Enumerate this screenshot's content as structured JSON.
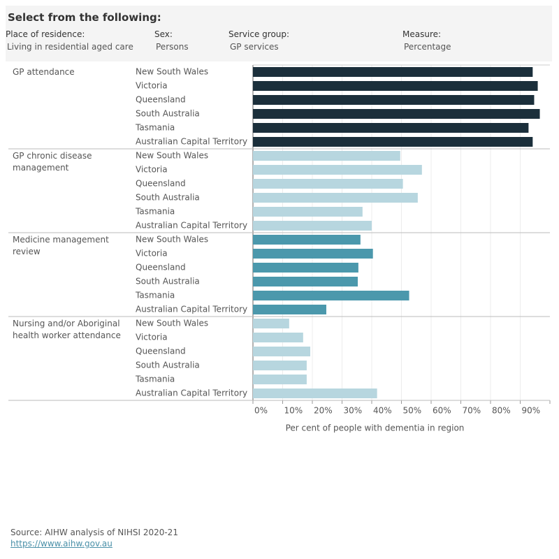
{
  "header": {
    "title": "Select from the following:",
    "filters": [
      {
        "label": "Place of residence:",
        "value": "Living in residential aged care"
      },
      {
        "label": "Sex:",
        "value": "Persons"
      },
      {
        "label": "Service group:",
        "value": "GP services"
      },
      {
        "label": "Measure:",
        "value": "Percentage"
      }
    ]
  },
  "chart_data": {
    "type": "bar",
    "orientation": "horizontal",
    "categories": [
      "New South Wales",
      "Victoria",
      "Queensland",
      "South Australia",
      "Tasmania",
      "Australian Capital Territory"
    ],
    "series": [
      {
        "name": "GP attendance",
        "color": "#1b2f3b",
        "values": [
          94.2,
          95.9,
          94.7,
          96.6,
          92.8,
          94.2
        ]
      },
      {
        "name": "GP chronic disease management",
        "color": "#b7d6df",
        "values": [
          49.6,
          56.9,
          50.5,
          55.5,
          36.9,
          40.0
        ]
      },
      {
        "name": "Medicine management review",
        "color": "#4b98ac",
        "values": [
          36.2,
          40.4,
          35.5,
          35.3,
          52.6,
          24.7
        ]
      },
      {
        "name": "Nursing and/or Aboriginal health worker attendance",
        "color": "#b7d6df",
        "values": [
          12.2,
          16.9,
          19.3,
          18.1,
          18.1,
          41.8
        ]
      }
    ],
    "xlim": [
      0,
      100
    ],
    "xticks": [
      {
        "value": 0,
        "label": "0%"
      },
      {
        "value": 10,
        "label": "10%"
      },
      {
        "value": 20,
        "label": "20%"
      },
      {
        "value": 30,
        "label": "30%"
      },
      {
        "value": 40,
        "label": "40%"
      },
      {
        "value": 50,
        "label": "50%"
      },
      {
        "value": 60,
        "label": "60%"
      },
      {
        "value": 70,
        "label": "70%"
      },
      {
        "value": 80,
        "label": "80%"
      },
      {
        "value": 90,
        "label": "90%"
      }
    ],
    "x_label": "Per cent of people with dementia in region",
    "grid": true
  },
  "footer": {
    "source": "Source: AIHW analysis of NIHSI 2020-21",
    "link": "https://www.aihw.gov.au"
  }
}
